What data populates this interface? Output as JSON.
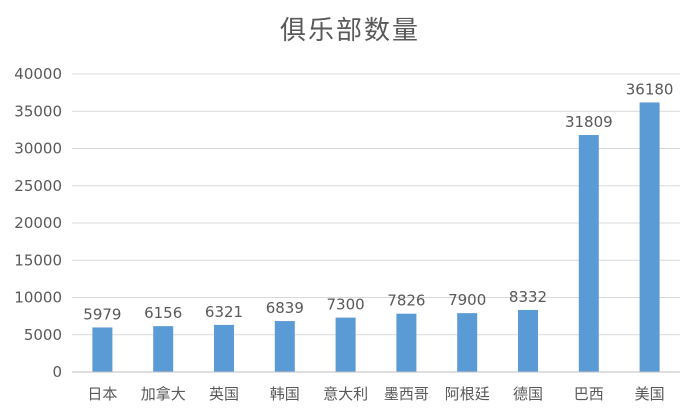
{
  "chart_data": {
    "type": "bar",
    "title": "俱乐部数量",
    "xlabel": "",
    "ylabel": "",
    "categories": [
      "日本",
      "加拿大",
      "英国",
      "韩国",
      "意大利",
      "墨西哥",
      "阿根廷",
      "德国",
      "巴西",
      "美国"
    ],
    "values": [
      5979,
      6156,
      6321,
      6839,
      7300,
      7826,
      7900,
      8332,
      31809,
      36180
    ],
    "value_labels": [
      "5979",
      "6156",
      "6321",
      "6839",
      "7300",
      "7826",
      "7900",
      "8332",
      "31809",
      "36180"
    ],
    "ylim": [
      0,
      40000
    ],
    "yticks": [
      0,
      5000,
      10000,
      15000,
      20000,
      25000,
      30000,
      35000,
      40000
    ],
    "ytick_labels": [
      "0",
      "5000",
      "10000",
      "15000",
      "20000",
      "25000",
      "30000",
      "35000",
      "40000"
    ],
    "grid": true,
    "legend": "none",
    "colors": {
      "bar": "#5B9BD5",
      "grid": "#D9D9D9",
      "axis": "#BFBFBF",
      "text": "#595959",
      "title": "#595959"
    }
  }
}
